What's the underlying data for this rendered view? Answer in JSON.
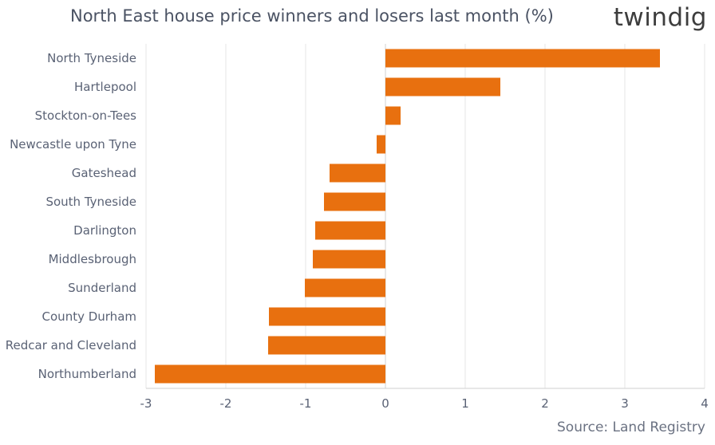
{
  "title": "North East house price winners and losers last month (%)",
  "logo": "twindig",
  "source": "Source: Land Registry",
  "colors": {
    "bar": "#e8700f",
    "grid": "#e6e6e6",
    "axis": "#cfcfcf"
  },
  "chart_data": {
    "type": "bar",
    "orientation": "horizontal",
    "title": "North East house price winners and losers last month (%)",
    "categories": [
      "North Tyneside",
      "Hartlepool",
      "Stockton-on-Tees",
      "Newcastle upon Tyne",
      "Gateshead",
      "South Tyneside",
      "Darlington",
      "Middlesbrough",
      "Sunderland",
      "County Durham",
      "Redcar and Cleveland",
      "Northumberland"
    ],
    "values": [
      3.44,
      1.44,
      0.19,
      -0.11,
      -0.7,
      -0.77,
      -0.88,
      -0.91,
      -1.01,
      -1.46,
      -1.47,
      -2.89
    ],
    "xlim": [
      -3,
      4
    ],
    "xticks": [
      "-3",
      "-2",
      "-1",
      "0",
      "1",
      "2",
      "3",
      "4"
    ],
    "grid": true,
    "legend": "none"
  }
}
